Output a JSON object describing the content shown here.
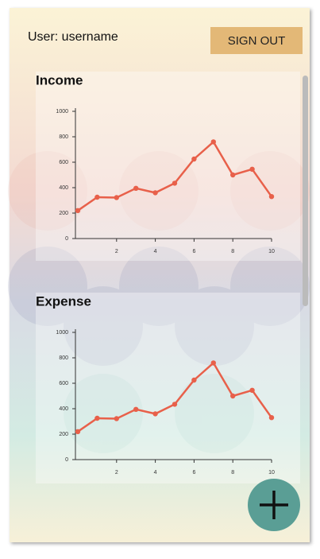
{
  "header": {
    "user": "User: username",
    "sign_out": "SIGN OUT"
  },
  "chart_data": [
    {
      "type": "line",
      "title": "Income",
      "x": [
        0,
        1,
        2,
        3,
        4,
        5,
        6,
        7,
        8,
        9,
        10
      ],
      "series": [
        {
          "color": "#e8604a",
          "values": [
            220,
            325,
            322,
            395,
            360,
            435,
            625,
            760,
            500,
            545,
            330
          ]
        }
      ],
      "xlim": [
        0,
        10
      ],
      "xticks": [
        2,
        4,
        6,
        8,
        10
      ],
      "ylim": [
        0,
        1000
      ],
      "yticks": [
        0,
        200,
        400,
        600,
        800,
        1000
      ]
    },
    {
      "type": "line",
      "title": "Expense",
      "x": [
        0,
        1,
        2,
        3,
        4,
        5,
        6,
        7,
        8,
        9,
        10
      ],
      "series": [
        {
          "color": "#e8604a",
          "values": [
            220,
            325,
            322,
            395,
            360,
            435,
            625,
            760,
            500,
            545,
            330
          ]
        }
      ],
      "xlim": [
        0,
        10
      ],
      "xticks": [
        2,
        4,
        6,
        8,
        10
      ],
      "ylim": [
        0,
        1000
      ],
      "yticks": [
        0,
        200,
        400,
        600,
        800,
        1000
      ]
    }
  ]
}
